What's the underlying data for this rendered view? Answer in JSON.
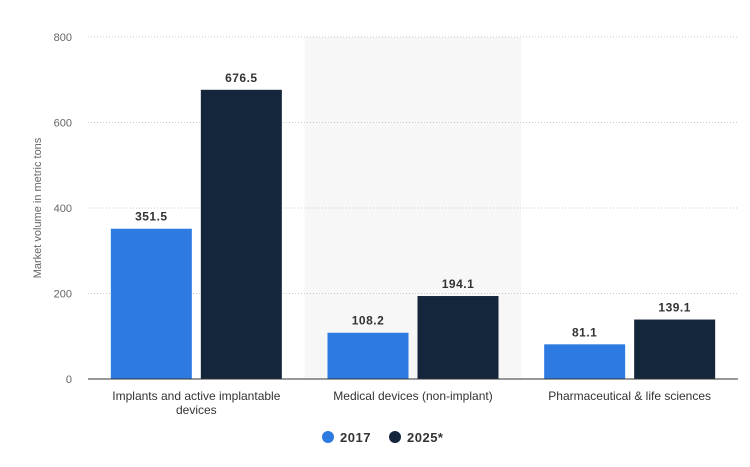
{
  "chart_data": {
    "type": "bar",
    "title": "",
    "xlabel": "",
    "ylabel": "Market volume in metric tons",
    "ylim": [
      0,
      800
    ],
    "yticks": [
      "0",
      "200",
      "400",
      "600",
      "800"
    ],
    "categories": [
      [
        "Implants and active implantable",
        "devices"
      ],
      [
        "Medical devices (non-implant)"
      ],
      [
        "Pharmaceutical & life sciences"
      ]
    ],
    "series": [
      {
        "name": "2017",
        "color": "#2d7be0",
        "values": [
          351.5,
          108.2,
          81.1
        ],
        "labels": [
          "351.5",
          "108.2",
          "81.1"
        ]
      },
      {
        "name": "2025*",
        "color": "#14263c",
        "values": [
          676.5,
          194.1,
          139.1
        ],
        "labels": [
          "676.5",
          "194.1",
          "139.1"
        ]
      }
    ],
    "grid": true,
    "legend_position": "bottom-center",
    "highlight_band_color": "#f7f7f7"
  }
}
